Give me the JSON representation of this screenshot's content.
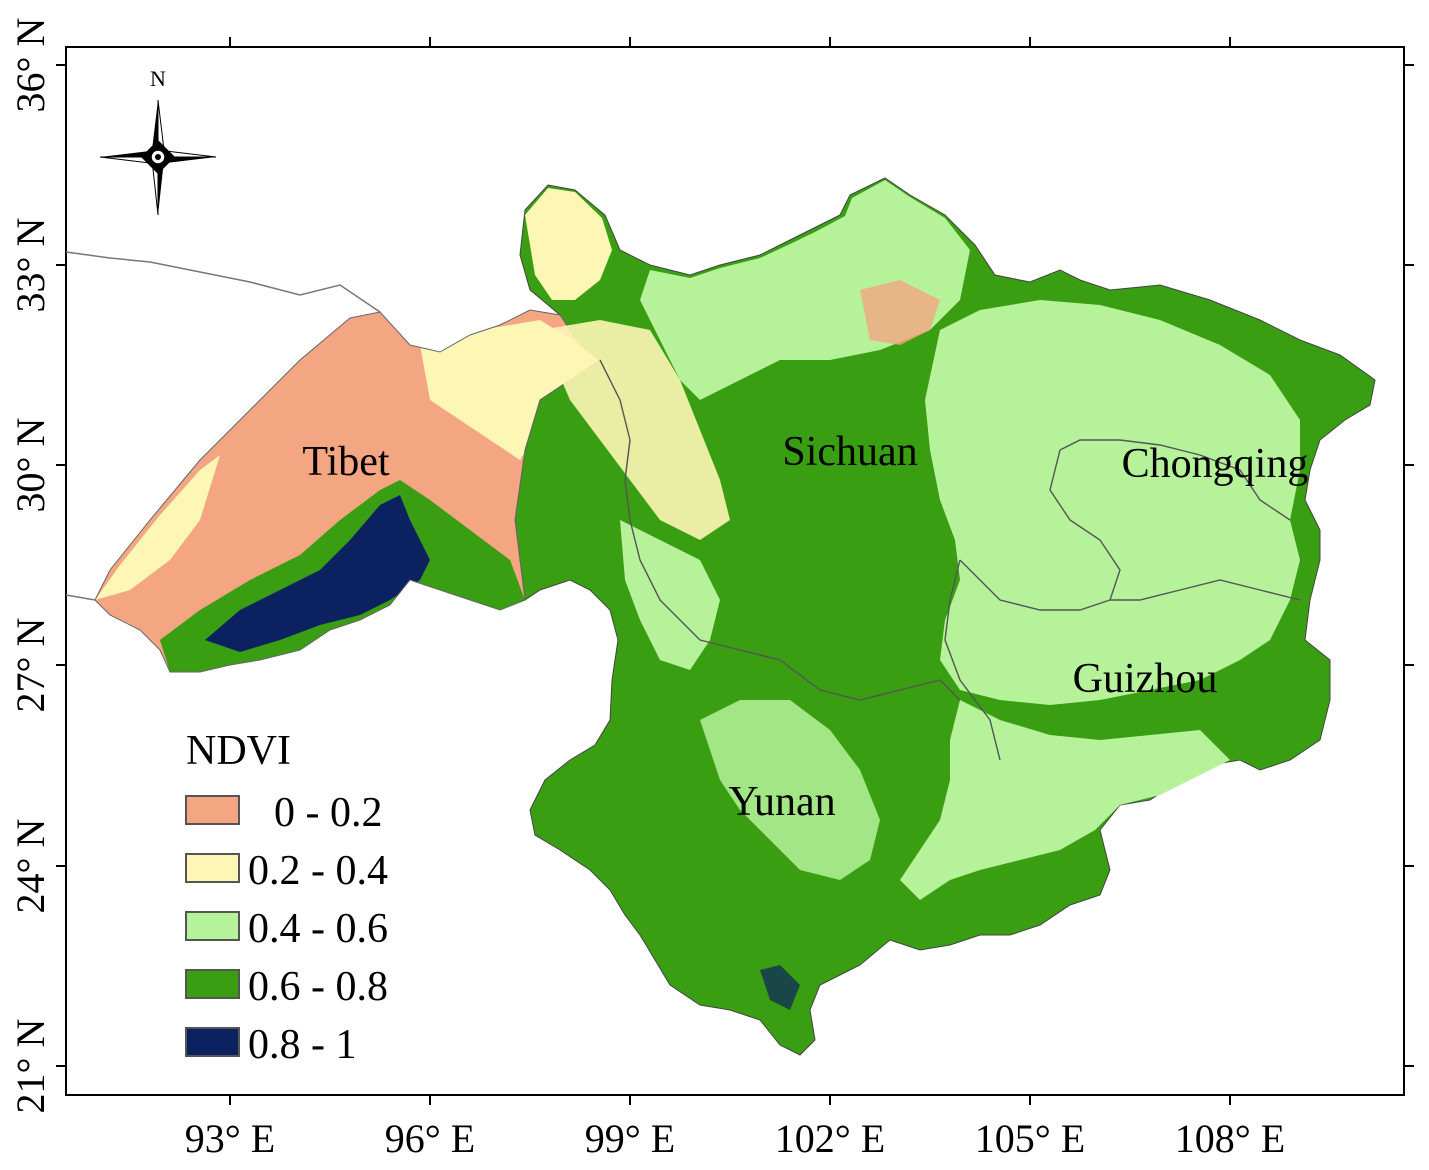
{
  "map": {
    "lon_labels": [
      "93° E",
      "96° E",
      "99° E",
      "102° E",
      "105° E",
      "108° E"
    ],
    "lat_labels": [
      "36° N",
      "33° N",
      "30° N",
      "27° N",
      "24° N",
      "21° N"
    ],
    "north_arrow_label": "N",
    "regions": [
      {
        "id": "tibet",
        "label": "Tibet"
      },
      {
        "id": "sichuan",
        "label": "Sichuan"
      },
      {
        "id": "chongqing",
        "label": "Chongqing"
      },
      {
        "id": "guizhou",
        "label": "Guizhou"
      },
      {
        "id": "yunan",
        "label": "Yunan"
      }
    ]
  },
  "legend": {
    "title": "NDVI",
    "classes": [
      {
        "label": "0 - 0.2",
        "color": "#f4a582"
      },
      {
        "label": "0.2 - 0.4",
        "color": "#fdf6b5"
      },
      {
        "label": "0.4 - 0.6",
        "color": "#b5f29a"
      },
      {
        "label": "0.6 - 0.8",
        "color": "#3a9e12"
      },
      {
        "label": "0.8 - 1",
        "color": "#0c2260"
      }
    ]
  }
}
